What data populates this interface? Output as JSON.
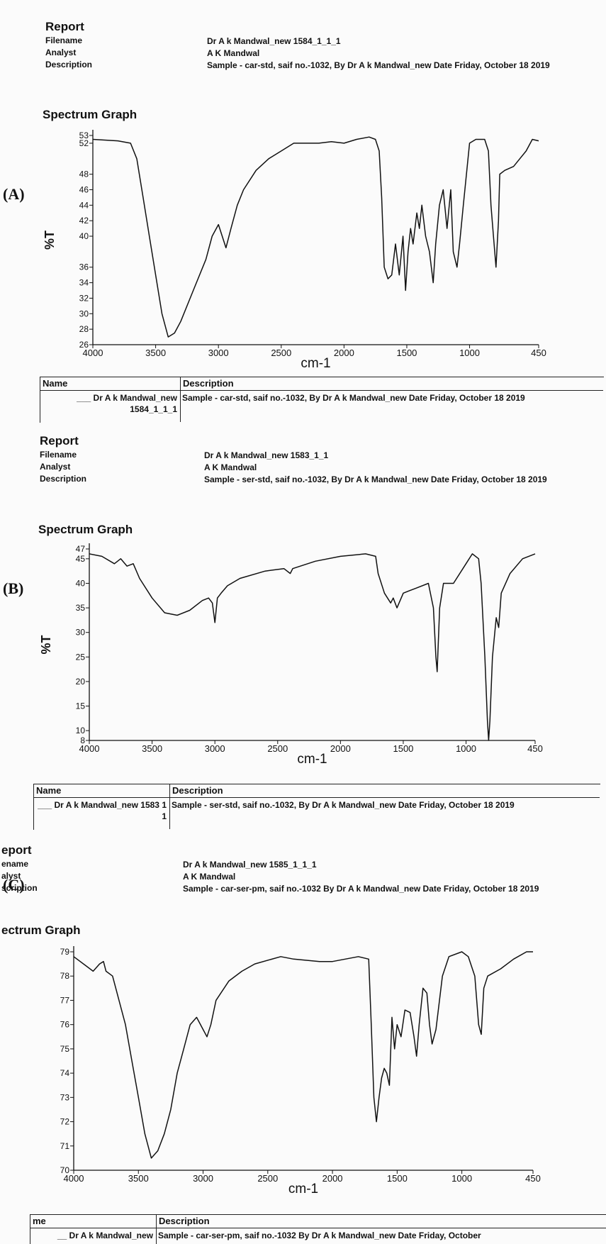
{
  "chart_data": [
    {
      "type": "line",
      "panel_label": "(A)",
      "title": "Spectrum Graph",
      "x_label": "cm-1",
      "y_label": "%T",
      "xlim": [
        4000,
        450
      ],
      "xticks": [
        4000,
        3500,
        3000,
        2500,
        2000,
        1500,
        1000,
        450
      ],
      "ylim": [
        26,
        53
      ],
      "yticks": [
        26,
        28,
        30,
        32,
        34,
        36,
        40,
        42,
        44,
        46,
        48,
        52,
        53
      ],
      "x": [
        4000,
        3800,
        3700,
        3650,
        3600,
        3550,
        3500,
        3450,
        3400,
        3350,
        3300,
        3200,
        3100,
        3050,
        3000,
        2970,
        2940,
        2900,
        2850,
        2800,
        2700,
        2600,
        2500,
        2400,
        2300,
        2200,
        2100,
        2000,
        1900,
        1800,
        1750,
        1720,
        1700,
        1680,
        1650,
        1620,
        1590,
        1560,
        1530,
        1510,
        1490,
        1470,
        1450,
        1420,
        1400,
        1380,
        1350,
        1320,
        1290,
        1270,
        1240,
        1210,
        1180,
        1150,
        1130,
        1100,
        1080,
        1050,
        1000,
        950,
        880,
        850,
        830,
        810,
        790,
        770,
        760,
        720,
        650,
        600,
        550,
        500,
        450
      ],
      "series": [
        {
          "color": "#111111",
          "values": [
            52.5,
            52.3,
            52,
            50,
            45,
            40,
            35,
            30,
            27,
            27.5,
            29,
            33,
            37,
            40,
            41.5,
            40,
            38.5,
            41,
            44,
            46,
            48.5,
            50,
            51,
            52,
            52,
            52,
            52.2,
            52,
            52.5,
            52.8,
            52.5,
            51,
            45,
            36,
            34.5,
            35,
            39,
            35,
            40,
            33,
            38,
            41,
            39,
            43,
            41,
            44,
            40,
            38,
            34,
            39,
            44,
            46,
            41,
            46,
            38,
            36,
            39,
            44,
            52,
            52.5,
            52.5,
            51,
            44,
            40,
            36,
            42,
            48,
            48.5,
            49,
            50,
            51,
            52.5,
            52.3
          ]
        }
      ]
    },
    {
      "type": "line",
      "panel_label": "(B)",
      "title": "Spectrum Graph",
      "x_label": "cm-1",
      "y_label": "%T",
      "xlim": [
        4000,
        450
      ],
      "xticks": [
        4000,
        3500,
        3000,
        2500,
        2000,
        1500,
        1000,
        450
      ],
      "ylim": [
        8,
        47
      ],
      "yticks": [
        8,
        10,
        15,
        20,
        25,
        30,
        35,
        40,
        45,
        47
      ],
      "x": [
        4000,
        3900,
        3800,
        3750,
        3700,
        3650,
        3600,
        3500,
        3400,
        3300,
        3200,
        3100,
        3050,
        3020,
        3000,
        2980,
        2950,
        2900,
        2800,
        2600,
        2450,
        2400,
        2380,
        2200,
        2000,
        1800,
        1720,
        1700,
        1650,
        1600,
        1580,
        1550,
        1500,
        1450,
        1400,
        1300,
        1260,
        1240,
        1230,
        1210,
        1180,
        1100,
        1000,
        950,
        900,
        880,
        850,
        830,
        820,
        810,
        790,
        760,
        740,
        720,
        650,
        550,
        450
      ],
      "series": [
        {
          "color": "#111111",
          "values": [
            46,
            45.5,
            44,
            45,
            43.5,
            44,
            41,
            37,
            34,
            33.5,
            34.5,
            36.5,
            37,
            36,
            32,
            37,
            38,
            39.5,
            41,
            42.5,
            43,
            42,
            43,
            44.5,
            45.5,
            46,
            45.5,
            42,
            38,
            36,
            37,
            35,
            38,
            38.5,
            39,
            40,
            35,
            25,
            22,
            35,
            40,
            40,
            44,
            46,
            45,
            40,
            25,
            12,
            8,
            12,
            25,
            33,
            31,
            38,
            42,
            45,
            46
          ]
        }
      ]
    },
    {
      "type": "line",
      "panel_label": "(C)",
      "title": "ectrum Graph",
      "x_label": "cm-1",
      "y_label": "",
      "xlim": [
        4000,
        450
      ],
      "xticks": [
        4000,
        3500,
        3000,
        2500,
        2000,
        1500,
        1000,
        450
      ],
      "ylim": [
        70,
        79
      ],
      "yticks": [
        70,
        71,
        72,
        73,
        74,
        75,
        76,
        77,
        78,
        79
      ],
      "x": [
        4000,
        3900,
        3850,
        3800,
        3770,
        3750,
        3700,
        3650,
        3600,
        3550,
        3500,
        3450,
        3400,
        3350,
        3300,
        3250,
        3200,
        3150,
        3100,
        3050,
        3000,
        2970,
        2940,
        2900,
        2800,
        2700,
        2600,
        2400,
        2300,
        2100,
        2000,
        1800,
        1720,
        1700,
        1680,
        1660,
        1640,
        1620,
        1600,
        1580,
        1560,
        1540,
        1520,
        1500,
        1470,
        1440,
        1400,
        1370,
        1350,
        1330,
        1300,
        1270,
        1250,
        1230,
        1200,
        1150,
        1100,
        1000,
        950,
        900,
        870,
        850,
        830,
        800,
        700,
        600,
        500,
        450
      ],
      "series": [
        {
          "color": "#111111",
          "values": [
            78.8,
            78.4,
            78.2,
            78.5,
            78.6,
            78.2,
            78,
            77,
            76,
            74.5,
            73,
            71.5,
            70.5,
            70.8,
            71.5,
            72.5,
            74,
            75,
            76,
            76.3,
            75.8,
            75.5,
            76,
            77,
            77.8,
            78.2,
            78.5,
            78.8,
            78.7,
            78.6,
            78.6,
            78.8,
            78.7,
            76,
            73,
            72,
            73,
            73.8,
            74.2,
            74,
            73.5,
            76.3,
            75,
            76,
            75.5,
            76.6,
            76.5,
            75.5,
            74.7,
            76,
            77.5,
            77.3,
            76,
            75.2,
            75.8,
            78,
            78.8,
            79,
            78.8,
            78,
            76,
            75.6,
            77.5,
            78,
            78.3,
            78.7,
            79,
            79
          ]
        }
      ]
    }
  ],
  "reports": [
    {
      "heading": "Report",
      "fields": [
        {
          "label": "Filename",
          "value": "Dr A k Mandwal_new 1584_1_1_1"
        },
        {
          "label": "Analyst",
          "value": "A K Mandwal"
        },
        {
          "label": "Description",
          "value": "Sample - car-std, saif no.-1032,  By Dr A k Mandwal_new Date Friday, October 18 2019"
        }
      ],
      "table": {
        "name_header": "Name",
        "description_header": "Description",
        "name": "___ Dr A k Mandwal_new 1584_1_1_1",
        "description": "Sample - car-std, saif no.-1032,  By Dr A k Mandwal_new Date Friday, October 18 2019"
      }
    },
    {
      "heading": "Report",
      "fields": [
        {
          "label": "Filename",
          "value": "Dr A k Mandwal_new 1583_1_1"
        },
        {
          "label": "Analyst",
          "value": "A K Mandwal"
        },
        {
          "label": "Description",
          "value": "Sample - ser-std, saif no.-1032,  By Dr A k Mandwal_new Date Friday, October 18 2019"
        }
      ],
      "table": {
        "name_header": "Name",
        "description_header": "Description",
        "name": "___ Dr A k Mandwal_new 1583 1 1",
        "description": "Sample - ser-std, saif no.-1032,  By Dr A k Mandwal_new Date Friday, October 18 2019"
      }
    },
    {
      "heading": "eport",
      "fields": [
        {
          "label": "ename",
          "value": "Dr A k Mandwal_new 1585_1_1_1"
        },
        {
          "label": "alyst",
          "value": "A K Mandwal"
        },
        {
          "label": "scription",
          "value": "Sample - car-ser-pm, saif no.-1032 By Dr A k Mandwal_new Date Friday, October 18 2019"
        }
      ],
      "table": {
        "name_header": "me",
        "description_header": "Description",
        "name": "__ Dr A k Mandwal_new",
        "description": "Sample - car-ser-pm, saif no.-1032 By Dr A k Mandwal_new Date Friday, October"
      }
    }
  ]
}
